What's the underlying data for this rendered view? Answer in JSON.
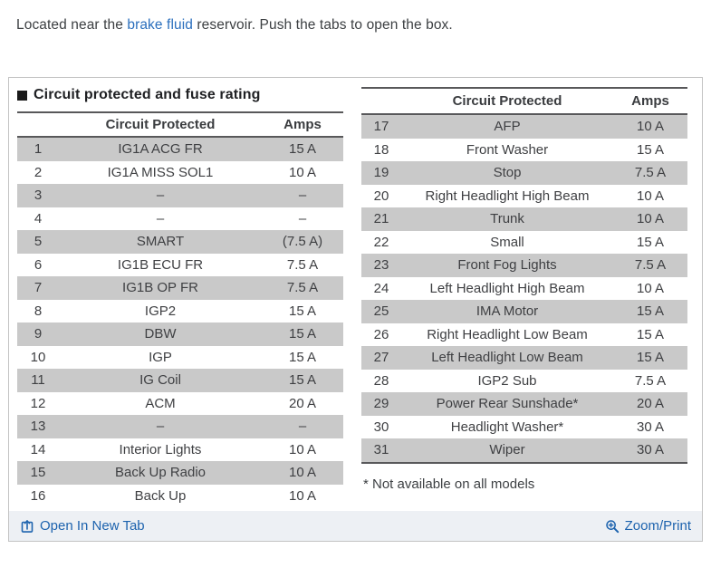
{
  "intro": {
    "text_before": "Located near the ",
    "link": "brake fluid",
    "text_after": " reservoir. Push the tabs to open the box."
  },
  "panel": {
    "title": "Circuit protected and fuse rating",
    "left_table": {
      "headers": {
        "num": "",
        "circuit": "Circuit Protected",
        "amps": "Amps"
      },
      "rows": [
        {
          "num": "1",
          "circuit": "IG1A ACG FR",
          "amps": "15 A"
        },
        {
          "num": "2",
          "circuit": "IG1A MISS SOL1",
          "amps": "10 A"
        },
        {
          "num": "3",
          "circuit": "–",
          "amps": "–"
        },
        {
          "num": "4",
          "circuit": "–",
          "amps": "–"
        },
        {
          "num": "5",
          "circuit": "SMART",
          "amps": "(7.5 A)"
        },
        {
          "num": "6",
          "circuit": "IG1B ECU FR",
          "amps": "7.5 A"
        },
        {
          "num": "7",
          "circuit": "IG1B OP FR",
          "amps": "7.5 A"
        },
        {
          "num": "8",
          "circuit": "IGP2",
          "amps": "15 A"
        },
        {
          "num": "9",
          "circuit": "DBW",
          "amps": "15 A"
        },
        {
          "num": "10",
          "circuit": "IGP",
          "amps": "15 A"
        },
        {
          "num": "11",
          "circuit": "IG Coil",
          "amps": "15 A"
        },
        {
          "num": "12",
          "circuit": "ACM",
          "amps": "20 A"
        },
        {
          "num": "13",
          "circuit": "–",
          "amps": "–"
        },
        {
          "num": "14",
          "circuit": "Interior Lights",
          "amps": "10 A"
        },
        {
          "num": "15",
          "circuit": "Back Up Radio",
          "amps": "10 A"
        },
        {
          "num": "16",
          "circuit": "Back Up",
          "amps": "10 A"
        }
      ]
    },
    "right_table": {
      "headers": {
        "num": "",
        "circuit": "Circuit Protected",
        "amps": "Amps"
      },
      "rows": [
        {
          "num": "17",
          "circuit": "AFP",
          "amps": "10 A"
        },
        {
          "num": "18",
          "circuit": "Front Washer",
          "amps": "15 A"
        },
        {
          "num": "19",
          "circuit": "Stop",
          "amps": "7.5 A"
        },
        {
          "num": "20",
          "circuit": "Right Headlight High Beam",
          "amps": "10 A"
        },
        {
          "num": "21",
          "circuit": "Trunk",
          "amps": "10 A"
        },
        {
          "num": "22",
          "circuit": "Small",
          "amps": "15 A"
        },
        {
          "num": "23",
          "circuit": "Front Fog Lights",
          "amps": "7.5 A"
        },
        {
          "num": "24",
          "circuit": "Left Headlight High Beam",
          "amps": "10 A"
        },
        {
          "num": "25",
          "circuit": "IMA Motor",
          "amps": "15 A"
        },
        {
          "num": "26",
          "circuit": "Right Headlight Low Beam",
          "amps": "15 A"
        },
        {
          "num": "27",
          "circuit": "Left Headlight Low Beam",
          "amps": "15 A"
        },
        {
          "num": "28",
          "circuit": "IGP2 Sub",
          "amps": "7.5 A"
        },
        {
          "num": "29",
          "circuit": "Power Rear Sunshade*",
          "amps": "20 A"
        },
        {
          "num": "30",
          "circuit": "Headlight Washer*",
          "amps": "30 A"
        },
        {
          "num": "31",
          "circuit": "Wiper",
          "amps": "30 A"
        }
      ],
      "footnote": "* Not available on all models"
    },
    "footer": {
      "open_link": "Open In New Tab",
      "zoom_link": "Zoom/Print"
    }
  },
  "colors": {
    "link_blue": "#2b6fbd",
    "footer_link_blue": "#1d63ae",
    "zebra_gray": "#c9c9c9",
    "rule_dark": "#58585a",
    "panel_border": "#c3c3c3",
    "footer_bg": "#edf0f4",
    "text": "#3f4043"
  }
}
